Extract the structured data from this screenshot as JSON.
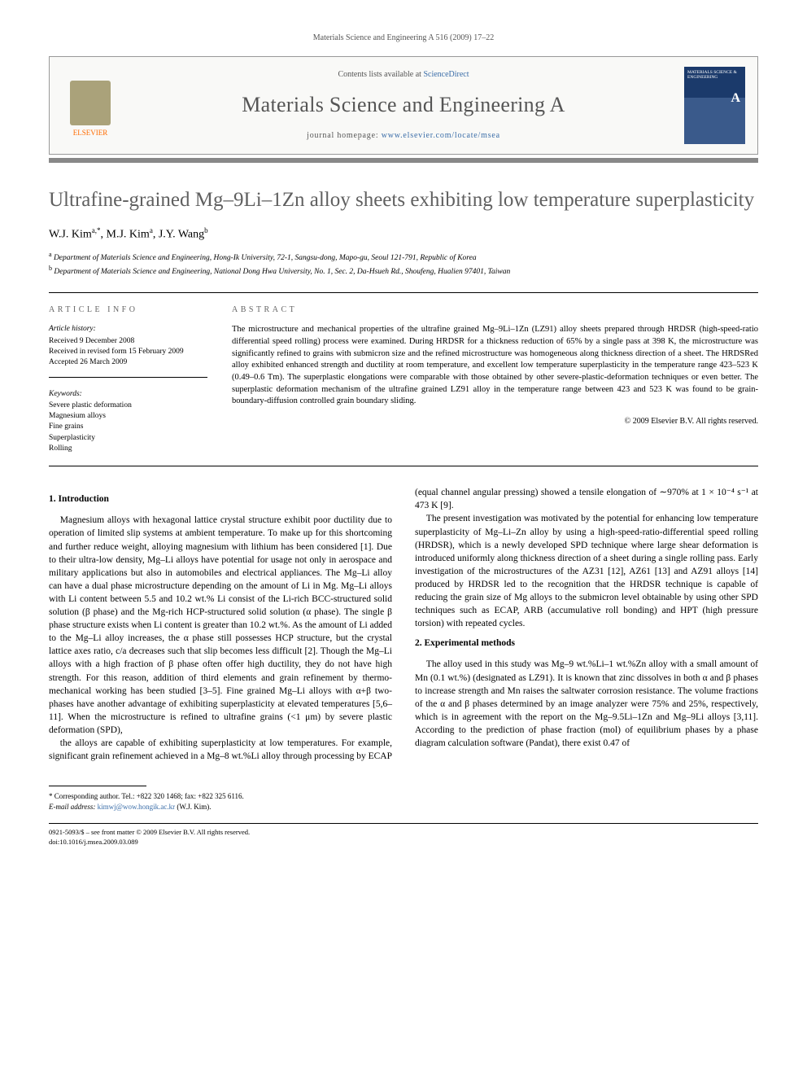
{
  "running_head": "Materials Science and Engineering A 516 (2009) 17–22",
  "header": {
    "publisher": "ELSEVIER",
    "contents_prefix": "Contents lists available at ",
    "contents_link": "ScienceDirect",
    "journal_name": "Materials Science and Engineering A",
    "homepage_prefix": "journal homepage: ",
    "homepage_url": "www.elsevier.com/locate/msea",
    "cover_title": "MATERIALS SCIENCE & ENGINEERING",
    "cover_letter": "A"
  },
  "title": "Ultrafine-grained Mg–9Li–1Zn alloy sheets exhibiting low temperature superplasticity",
  "authors_html": "W.J. Kim<sup>a,*</sup>, M.J. Kim<sup>a</sup>, J.Y. Wang<sup>b</sup>",
  "affiliations": [
    "Department of Materials Science and Engineering, Hong-Ik University, 72-1, Sangsu-dong, Mapo-gu, Seoul 121-791, Republic of Korea",
    "Department of Materials Science and Engineering, National Dong Hwa University, No. 1, Sec. 2, Da-Hsueh Rd., Shoufeng, Hualien 97401, Taiwan"
  ],
  "info": {
    "head_left": "ARTICLE INFO",
    "head_right": "ABSTRACT",
    "history_head": "Article history:",
    "history": [
      "Received 9 December 2008",
      "Received in revised form 15 February 2009",
      "Accepted 26 March 2009"
    ],
    "keywords_head": "Keywords:",
    "keywords": [
      "Severe plastic deformation",
      "Magnesium alloys",
      "Fine grains",
      "Superplasticity",
      "Rolling"
    ],
    "abstract": "The microstructure and mechanical properties of the ultrafine grained Mg–9Li–1Zn (LZ91) alloy sheets prepared through HRDSR (high-speed-ratio differential speed rolling) process were examined. During HRDSR for a thickness reduction of 65% by a single pass at 398 K, the microstructure was significantly refined to grains with submicron size and the refined microstructure was homogeneous along thickness direction of a sheet. The HRDSRed alloy exhibited enhanced strength and ductility at room temperature, and excellent low temperature superplasticity in the temperature range 423–523 K (0.49–0.6 Tm). The superplastic elongations were comparable with those obtained by other severe-plastic-deformation techniques or even better. The superplastic deformation mechanism of the ultrafine grained LZ91 alloy in the temperature range between 423 and 523 K was found to be grain-boundary-diffusion controlled grain boundary sliding.",
    "copyright": "© 2009 Elsevier B.V. All rights reserved."
  },
  "sections": {
    "s1": {
      "head": "1. Introduction",
      "p1": "Magnesium alloys with hexagonal lattice crystal structure exhibit poor ductility due to operation of limited slip systems at ambient temperature. To make up for this shortcoming and further reduce weight, alloying magnesium with lithium has been considered [1]. Due to their ultra-low density, Mg–Li alloys have potential for usage not only in aerospace and military applications but also in automobiles and electrical appliances. The Mg–Li alloy can have a dual phase microstructure depending on the amount of Li in Mg. Mg–Li alloys with Li content between 5.5 and 10.2 wt.% Li consist of the Li-rich BCC-structured solid solution (β phase) and the Mg-rich HCP-structured solid solution (α phase). The single β phase structure exists when Li content is greater than 10.2 wt.%. As the amount of Li added to the Mg–Li alloy increases, the α phase still possesses HCP structure, but the crystal lattice axes ratio, c/a decreases such that slip becomes less difficult [2]. Though the Mg–Li alloys with a high fraction of β phase often offer high ductility, they do not have high strength. For this reason, addition of third elements and grain refinement by thermo-mechanical working has been studied [3–5]. Fine grained Mg–Li alloys with α+β two-phases have another advantage of exhibiting superplasticity at elevated temperatures [5,6–11]. When the microstructure is refined to ultrafine grains (<1 μm) by severe plastic deformation (SPD),",
      "p2": "the alloys are capable of exhibiting superplasticity at low temperatures. For example, significant grain refinement achieved in a Mg–8 wt.%Li alloy through processing by ECAP (equal channel angular pressing) showed a tensile elongation of ∼970% at 1 × 10⁻⁴ s⁻¹ at 473 K [9].",
      "p3": "The present investigation was motivated by the potential for enhancing low temperature superplasticity of Mg–Li–Zn alloy by using a high-speed-ratio-differential speed rolling (HRDSR), which is a newly developed SPD technique where large shear deformation is introduced uniformly along thickness direction of a sheet during a single rolling pass. Early investigation of the microstructures of the AZ31 [12], AZ61 [13] and AZ91 alloys [14] produced by HRDSR led to the recognition that the HRDSR technique is capable of reducing the grain size of Mg alloys to the submicron level obtainable by using other SPD techniques such as ECAP, ARB (accumulative roll bonding) and HPT (high pressure torsion) with repeated cycles."
    },
    "s2": {
      "head": "2. Experimental methods",
      "p1": "The alloy used in this study was Mg–9 wt.%Li–1 wt.%Zn alloy with a small amount of Mn (0.1 wt.%) (designated as LZ91). It is known that zinc dissolves in both α and β phases to increase strength and Mn raises the saltwater corrosion resistance. The volume fractions of the α and β phases determined by an image analyzer were 75% and 25%, respectively, which is in agreement with the report on the Mg–9.5Li–1Zn and Mg–9Li alloys [3,11]. According to the prediction of phase fraction (mol) of equilibrium phases by a phase diagram calculation software (Pandat), there exist 0.47 of"
    }
  },
  "footnotes": {
    "corr": "* Corresponding author. Tel.: +822 320 1468; fax: +822 325 6116.",
    "email_label": "E-mail address: ",
    "email": "kimwj@wow.hongik.ac.kr",
    "email_suffix": " (W.J. Kim)."
  },
  "bottom": {
    "issn": "0921-5093/$ – see front matter © 2009 Elsevier B.V. All rights reserved.",
    "doi": "doi:10.1016/j.msea.2009.03.089"
  },
  "colors": {
    "link": "#3a6da8",
    "rule": "#888888",
    "text_muted": "#606060"
  }
}
